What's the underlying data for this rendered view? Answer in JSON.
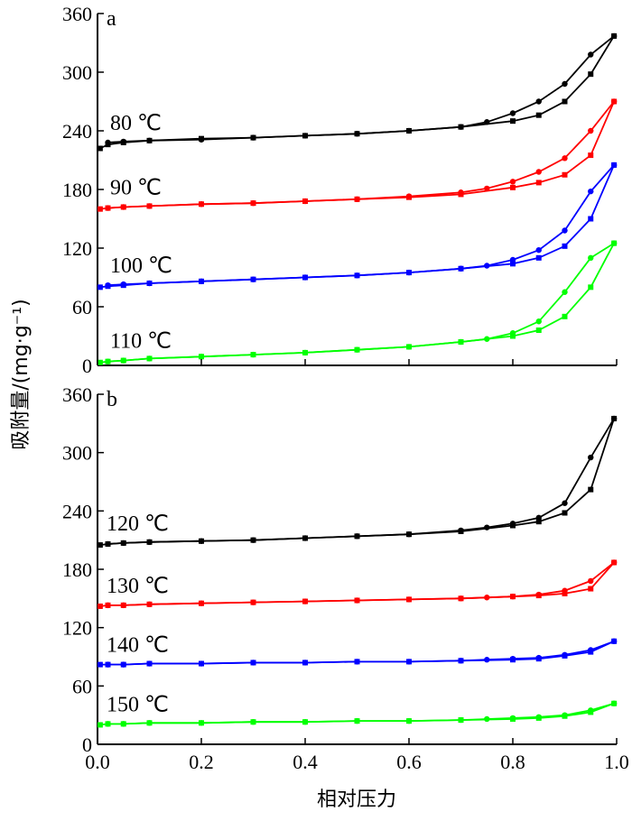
{
  "chart_data": {
    "type": "line",
    "xlabel": "相对压力",
    "ylabel": "吸附量/(mg·g⁻¹)",
    "xlim": [
      0,
      1.0
    ],
    "x_ticks": [
      "0.0",
      "0.2",
      "0.4",
      "0.6",
      "0.8",
      "1.0"
    ],
    "panels": [
      {
        "id": "a",
        "label": "a",
        "ylim": [
          0,
          360
        ],
        "y_ticks": [
          "0",
          "60",
          "120",
          "180",
          "240",
          "300",
          "360"
        ],
        "series": [
          {
            "name": "80 ℃",
            "color": "#000000",
            "adsorption": [
              [
                0.005,
                222
              ],
              [
                0.02,
                226
              ],
              [
                0.05,
                228
              ],
              [
                0.1,
                230
              ],
              [
                0.2,
                232
              ],
              [
                0.3,
                233
              ],
              [
                0.4,
                235
              ],
              [
                0.5,
                237
              ],
              [
                0.6,
                240
              ],
              [
                0.7,
                244
              ],
              [
                0.8,
                250
              ],
              [
                0.85,
                256
              ],
              [
                0.9,
                270
              ],
              [
                0.95,
                298
              ],
              [
                0.995,
                337
              ]
            ],
            "desorption": [
              [
                0.995,
                337
              ],
              [
                0.95,
                318
              ],
              [
                0.9,
                288
              ],
              [
                0.85,
                270
              ],
              [
                0.8,
                258
              ],
              [
                0.75,
                249
              ],
              [
                0.7,
                244
              ],
              [
                0.6,
                240
              ],
              [
                0.5,
                237
              ],
              [
                0.4,
                235
              ],
              [
                0.3,
                233
              ],
              [
                0.2,
                231
              ],
              [
                0.1,
                230
              ],
              [
                0.05,
                229
              ],
              [
                0.02,
                228
              ]
            ]
          },
          {
            "name": "90 ℃",
            "color": "#ff0000",
            "adsorption": [
              [
                0.005,
                160
              ],
              [
                0.02,
                161
              ],
              [
                0.05,
                162
              ],
              [
                0.1,
                163
              ],
              [
                0.2,
                165
              ],
              [
                0.3,
                166
              ],
              [
                0.4,
                168
              ],
              [
                0.5,
                170
              ],
              [
                0.6,
                172
              ],
              [
                0.7,
                175
              ],
              [
                0.8,
                182
              ],
              [
                0.85,
                187
              ],
              [
                0.9,
                195
              ],
              [
                0.95,
                215
              ],
              [
                0.995,
                270
              ]
            ],
            "desorption": [
              [
                0.995,
                270
              ],
              [
                0.95,
                240
              ],
              [
                0.9,
                212
              ],
              [
                0.85,
                198
              ],
              [
                0.8,
                188
              ],
              [
                0.75,
                181
              ],
              [
                0.7,
                177
              ],
              [
                0.6,
                173
              ],
              [
                0.5,
                170
              ],
              [
                0.4,
                168
              ],
              [
                0.3,
                166
              ],
              [
                0.2,
                165
              ],
              [
                0.1,
                163
              ],
              [
                0.05,
                162
              ],
              [
                0.02,
                161
              ]
            ]
          },
          {
            "name": "100 ℃",
            "color": "#0000ff",
            "adsorption": [
              [
                0.005,
                80
              ],
              [
                0.02,
                81
              ],
              [
                0.05,
                82
              ],
              [
                0.1,
                84
              ],
              [
                0.2,
                86
              ],
              [
                0.3,
                88
              ],
              [
                0.4,
                90
              ],
              [
                0.5,
                92
              ],
              [
                0.6,
                95
              ],
              [
                0.7,
                99
              ],
              [
                0.8,
                104
              ],
              [
                0.85,
                110
              ],
              [
                0.9,
                122
              ],
              [
                0.95,
                150
              ],
              [
                0.995,
                205
              ]
            ],
            "desorption": [
              [
                0.995,
                205
              ],
              [
                0.95,
                178
              ],
              [
                0.9,
                138
              ],
              [
                0.85,
                118
              ],
              [
                0.8,
                108
              ],
              [
                0.75,
                102
              ],
              [
                0.7,
                99
              ],
              [
                0.6,
                95
              ],
              [
                0.5,
                92
              ],
              [
                0.4,
                90
              ],
              [
                0.3,
                88
              ],
              [
                0.2,
                86
              ],
              [
                0.1,
                84
              ],
              [
                0.05,
                83
              ],
              [
                0.02,
                82
              ]
            ]
          },
          {
            "name": "110 ℃",
            "color": "#00ff00",
            "adsorption": [
              [
                0.005,
                3
              ],
              [
                0.02,
                4
              ],
              [
                0.05,
                5
              ],
              [
                0.1,
                7
              ],
              [
                0.2,
                9
              ],
              [
                0.3,
                11
              ],
              [
                0.4,
                13
              ],
              [
                0.5,
                16
              ],
              [
                0.6,
                19
              ],
              [
                0.7,
                24
              ],
              [
                0.8,
                30
              ],
              [
                0.85,
                36
              ],
              [
                0.9,
                50
              ],
              [
                0.95,
                80
              ],
              [
                0.995,
                125
              ]
            ],
            "desorption": [
              [
                0.995,
                125
              ],
              [
                0.95,
                110
              ],
              [
                0.9,
                75
              ],
              [
                0.85,
                45
              ],
              [
                0.8,
                33
              ],
              [
                0.75,
                27
              ],
              [
                0.7,
                24
              ],
              [
                0.6,
                19
              ],
              [
                0.5,
                16
              ],
              [
                0.4,
                13
              ],
              [
                0.3,
                11
              ],
              [
                0.2,
                9
              ],
              [
                0.1,
                7
              ],
              [
                0.05,
                5
              ],
              [
                0.02,
                4
              ]
            ]
          }
        ]
      },
      {
        "id": "b",
        "label": "b",
        "ylim": [
          0,
          360
        ],
        "y_ticks": [
          "0",
          "60",
          "120",
          "180",
          "240",
          "300",
          "360"
        ],
        "series": [
          {
            "name": "120 ℃",
            "color": "#000000",
            "adsorption": [
              [
                0.005,
                205
              ],
              [
                0.02,
                206
              ],
              [
                0.05,
                207
              ],
              [
                0.1,
                208
              ],
              [
                0.2,
                209
              ],
              [
                0.3,
                210
              ],
              [
                0.4,
                212
              ],
              [
                0.5,
                214
              ],
              [
                0.6,
                216
              ],
              [
                0.7,
                219
              ],
              [
                0.8,
                225
              ],
              [
                0.85,
                229
              ],
              [
                0.9,
                238
              ],
              [
                0.95,
                262
              ],
              [
                0.995,
                335
              ]
            ],
            "desorption": [
              [
                0.995,
                335
              ],
              [
                0.95,
                295
              ],
              [
                0.9,
                248
              ],
              [
                0.85,
                233
              ],
              [
                0.8,
                227
              ],
              [
                0.75,
                223
              ],
              [
                0.7,
                220
              ],
              [
                0.6,
                216
              ],
              [
                0.5,
                214
              ],
              [
                0.4,
                212
              ],
              [
                0.3,
                210
              ],
              [
                0.2,
                209
              ],
              [
                0.1,
                208
              ],
              [
                0.05,
                207
              ],
              [
                0.02,
                206
              ]
            ]
          },
          {
            "name": "130 ℃",
            "color": "#ff0000",
            "adsorption": [
              [
                0.005,
                142
              ],
              [
                0.02,
                143
              ],
              [
                0.05,
                143
              ],
              [
                0.1,
                144
              ],
              [
                0.2,
                145
              ],
              [
                0.3,
                146
              ],
              [
                0.4,
                147
              ],
              [
                0.5,
                148
              ],
              [
                0.6,
                149
              ],
              [
                0.7,
                150
              ],
              [
                0.8,
                152
              ],
              [
                0.85,
                153
              ],
              [
                0.9,
                155
              ],
              [
                0.95,
                160
              ],
              [
                0.995,
                187
              ]
            ],
            "desorption": [
              [
                0.995,
                187
              ],
              [
                0.95,
                168
              ],
              [
                0.9,
                158
              ],
              [
                0.85,
                154
              ],
              [
                0.8,
                152
              ],
              [
                0.75,
                151
              ],
              [
                0.7,
                150
              ],
              [
                0.6,
                149
              ],
              [
                0.5,
                148
              ],
              [
                0.4,
                147
              ],
              [
                0.3,
                146
              ],
              [
                0.2,
                145
              ],
              [
                0.1,
                144
              ],
              [
                0.05,
                143
              ],
              [
                0.02,
                143
              ]
            ]
          },
          {
            "name": "140 ℃",
            "color": "#0000ff",
            "adsorption": [
              [
                0.005,
                82
              ],
              [
                0.02,
                82
              ],
              [
                0.05,
                82
              ],
              [
                0.1,
                83
              ],
              [
                0.2,
                83
              ],
              [
                0.3,
                84
              ],
              [
                0.4,
                84
              ],
              [
                0.5,
                85
              ],
              [
                0.6,
                85
              ],
              [
                0.7,
                86
              ],
              [
                0.8,
                87
              ],
              [
                0.85,
                88
              ],
              [
                0.9,
                91
              ],
              [
                0.95,
                95
              ],
              [
                0.995,
                106
              ]
            ],
            "desorption": [
              [
                0.995,
                106
              ],
              [
                0.95,
                97
              ],
              [
                0.9,
                92
              ],
              [
                0.85,
                89
              ],
              [
                0.8,
                88
              ],
              [
                0.75,
                87
              ],
              [
                0.7,
                86
              ],
              [
                0.6,
                85
              ],
              [
                0.5,
                85
              ],
              [
                0.4,
                84
              ],
              [
                0.3,
                84
              ],
              [
                0.2,
                83
              ],
              [
                0.1,
                83
              ],
              [
                0.05,
                82
              ],
              [
                0.02,
                82
              ]
            ]
          },
          {
            "name": "150 ℃",
            "color": "#00ff00",
            "adsorption": [
              [
                0.005,
                20
              ],
              [
                0.02,
                21
              ],
              [
                0.05,
                21
              ],
              [
                0.1,
                22
              ],
              [
                0.2,
                22
              ],
              [
                0.3,
                23
              ],
              [
                0.4,
                23
              ],
              [
                0.5,
                24
              ],
              [
                0.6,
                24
              ],
              [
                0.7,
                25
              ],
              [
                0.8,
                26
              ],
              [
                0.85,
                27
              ],
              [
                0.9,
                29
              ],
              [
                0.95,
                33
              ],
              [
                0.995,
                42
              ]
            ],
            "desorption": [
              [
                0.995,
                42
              ],
              [
                0.95,
                35
              ],
              [
                0.9,
                30
              ],
              [
                0.85,
                28
              ],
              [
                0.8,
                27
              ],
              [
                0.75,
                26
              ],
              [
                0.7,
                25
              ],
              [
                0.6,
                24
              ],
              [
                0.5,
                24
              ],
              [
                0.4,
                23
              ],
              [
                0.3,
                23
              ],
              [
                0.2,
                22
              ],
              [
                0.1,
                22
              ],
              [
                0.05,
                21
              ],
              [
                0.02,
                21
              ]
            ]
          }
        ]
      }
    ]
  }
}
